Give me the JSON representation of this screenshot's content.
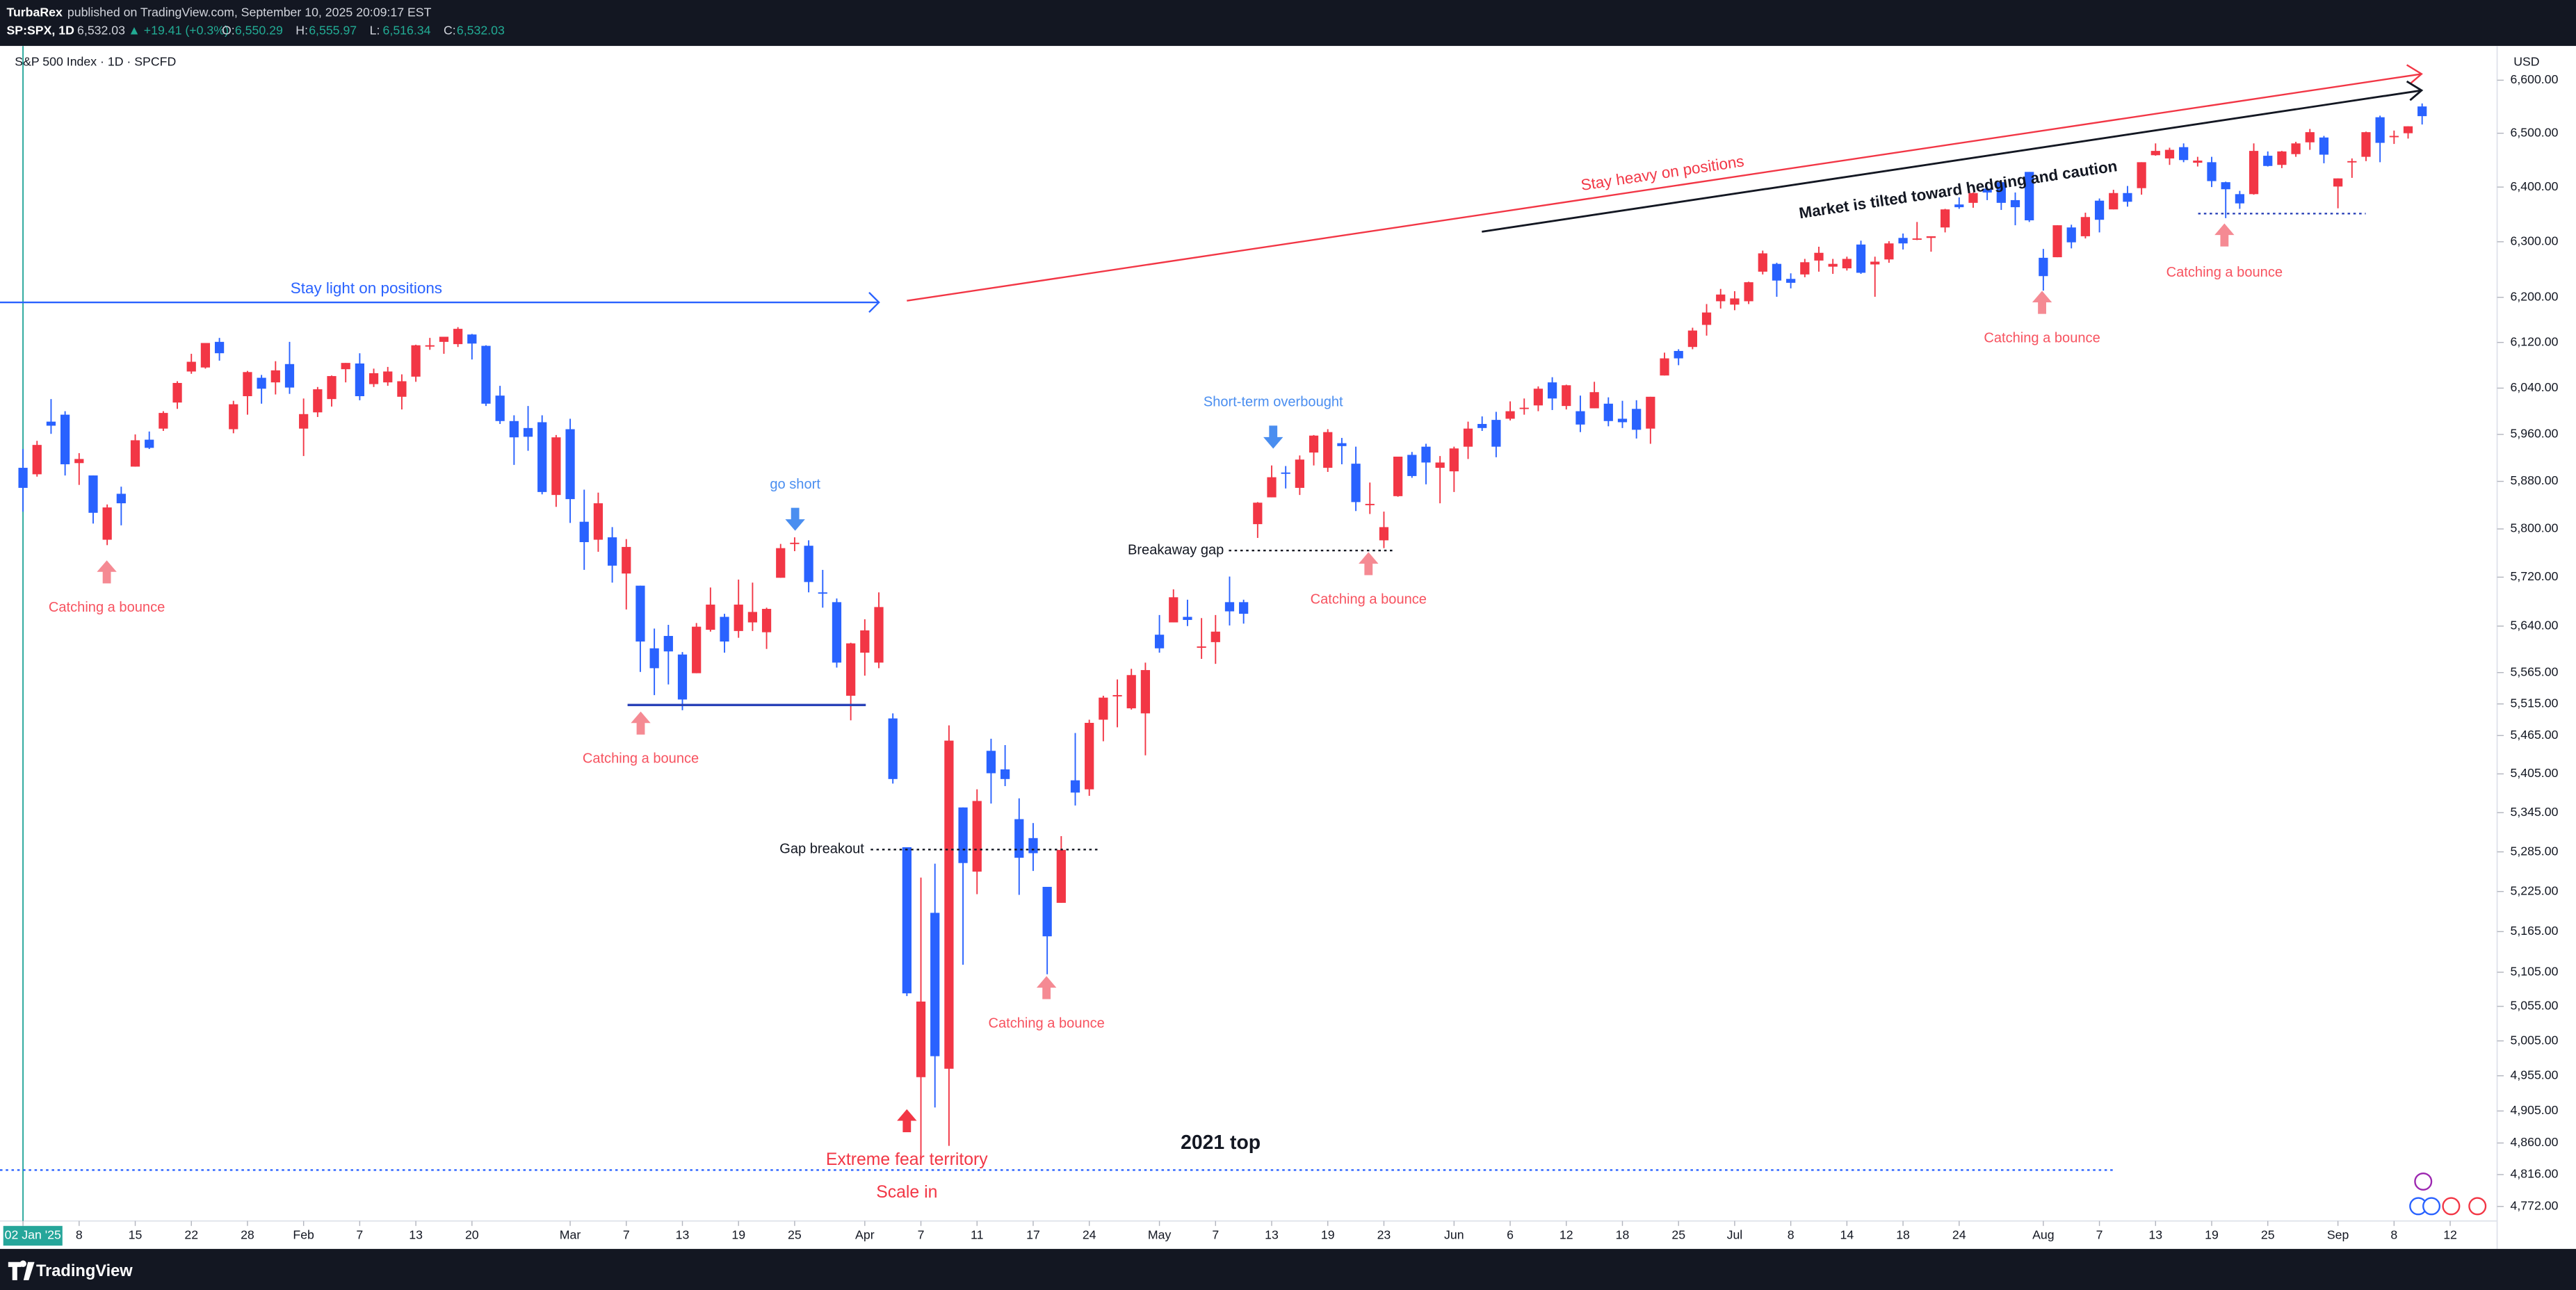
{
  "header": {
    "publisher": "TurbaRex",
    "published": "published on TradingView.com, September 10, 2025 20:09:17 EST",
    "symbol": "SP:SPX, 1D",
    "last": "6,532.03",
    "change": "▲ +19.41 (+0.3%)",
    "ohlc": [
      {
        "key": "O:",
        "value": "6,550.29"
      },
      {
        "key": "H:",
        "value": "6,555.97"
      },
      {
        "key": "L:",
        "value": "6,516.34"
      },
      {
        "key": "C:",
        "value": "6,532.03"
      }
    ]
  },
  "footer": {
    "brand": "TradingView"
  },
  "chart_data": {
    "type": "candlestick",
    "title": "S&P 500 Index · 1D · SPCFD",
    "currency": "USD",
    "log_scale": true,
    "grid": false,
    "up_color": "#f23645",
    "down_color": "#2962ff",
    "x": [
      "2025-01-02",
      "2025-01-03",
      "2025-01-06",
      "2025-01-07",
      "2025-01-08",
      "2025-01-10",
      "2025-01-13",
      "2025-01-14",
      "2025-01-15",
      "2025-01-16",
      "2025-01-17",
      "2025-01-21",
      "2025-01-22",
      "2025-01-23",
      "2025-01-24",
      "2025-01-27",
      "2025-01-28",
      "2025-01-29",
      "2025-01-30",
      "2025-01-31",
      "2025-02-03",
      "2025-02-04",
      "2025-02-05",
      "2025-02-06",
      "2025-02-07",
      "2025-02-10",
      "2025-02-11",
      "2025-02-12",
      "2025-02-13",
      "2025-02-14",
      "2025-02-18",
      "2025-02-19",
      "2025-02-20",
      "2025-02-21",
      "2025-02-24",
      "2025-02-25",
      "2025-02-26",
      "2025-02-27",
      "2025-02-28",
      "2025-03-03",
      "2025-03-04",
      "2025-03-05",
      "2025-03-06",
      "2025-03-07",
      "2025-03-10",
      "2025-03-11",
      "2025-03-12",
      "2025-03-13",
      "2025-03-14",
      "2025-03-17",
      "2025-03-18",
      "2025-03-19",
      "2025-03-20",
      "2025-03-21",
      "2025-03-24",
      "2025-03-25",
      "2025-03-26",
      "2025-03-27",
      "2025-03-28",
      "2025-03-31",
      "2025-04-01",
      "2025-04-02",
      "2025-04-03",
      "2025-04-04",
      "2025-04-07",
      "2025-04-08",
      "2025-04-09",
      "2025-04-10",
      "2025-04-11",
      "2025-04-14",
      "2025-04-15",
      "2025-04-16",
      "2025-04-17",
      "2025-04-21",
      "2025-04-22",
      "2025-04-23",
      "2025-04-24",
      "2025-04-25",
      "2025-04-28",
      "2025-04-29",
      "2025-04-30",
      "2025-05-01",
      "2025-05-02",
      "2025-05-05",
      "2025-05-06",
      "2025-05-07",
      "2025-05-08",
      "2025-05-09",
      "2025-05-12",
      "2025-05-13",
      "2025-05-14",
      "2025-05-15",
      "2025-05-16",
      "2025-05-19",
      "2025-05-20",
      "2025-05-21",
      "2025-05-22",
      "2025-05-23",
      "2025-05-27",
      "2025-05-28",
      "2025-05-29",
      "2025-05-30",
      "2025-06-02",
      "2025-06-03",
      "2025-06-04",
      "2025-06-05",
      "2025-06-06",
      "2025-06-09",
      "2025-06-10",
      "2025-06-11",
      "2025-06-12",
      "2025-06-13",
      "2025-06-16",
      "2025-06-17",
      "2025-06-18",
      "2025-06-20",
      "2025-06-23",
      "2025-06-24",
      "2025-06-25",
      "2025-06-26",
      "2025-06-27",
      "2025-06-30",
      "2025-07-01",
      "2025-07-02",
      "2025-07-03",
      "2025-07-07",
      "2025-07-08",
      "2025-07-09",
      "2025-07-10",
      "2025-07-11",
      "2025-07-14",
      "2025-07-15",
      "2025-07-16",
      "2025-07-17",
      "2025-07-18",
      "2025-07-21",
      "2025-07-22",
      "2025-07-23",
      "2025-07-24",
      "2025-07-25",
      "2025-07-28",
      "2025-07-29",
      "2025-07-30",
      "2025-07-31",
      "2025-08-01",
      "2025-08-04",
      "2025-08-05",
      "2025-08-06",
      "2025-08-07",
      "2025-08-08",
      "2025-08-11",
      "2025-08-12",
      "2025-08-13",
      "2025-08-14",
      "2025-08-15",
      "2025-08-18",
      "2025-08-19",
      "2025-08-20",
      "2025-08-21",
      "2025-08-22",
      "2025-08-25",
      "2025-08-26",
      "2025-08-27",
      "2025-08-28",
      "2025-08-29",
      "2025-09-02",
      "2025-09-03",
      "2025-09-04",
      "2025-09-05",
      "2025-09-08",
      "2025-09-09",
      "2025-09-10"
    ],
    "open": [
      5903,
      5892,
      5982,
      5994,
      5911,
      5890,
      5782,
      5859,
      5905,
      5951,
      5970,
      6015,
      6069,
      6076,
      6121,
      5969,
      6026,
      6058,
      6050,
      6082,
      5970,
      5998,
      6021,
      6073,
      6083,
      6047,
      6050,
      6025,
      6060,
      6115,
      6121,
      6117,
      6134,
      6114,
      6027,
      5983,
      5971,
      5981,
      5857,
      5969,
      5812,
      5782,
      5786,
      5726,
      5706,
      5604,
      5624,
      5594,
      5564,
      5634,
      5655,
      5632,
      5646,
      5630,
      5719,
      5776,
      5772,
      5695,
      5679,
      5528,
      5597,
      5581,
      5492,
      5292,
      4953,
      5193,
      4965,
      5353,
      5255,
      5441,
      5412,
      5335,
      5306,
      5232,
      5208,
      5395,
      5381,
      5490,
      5529,
      5508,
      5500,
      5626,
      5646,
      5655,
      5605,
      5614,
      5679,
      5679,
      5808,
      5853,
      5895,
      5869,
      5929,
      5903,
      5945,
      5910,
      5841,
      5781,
      5855,
      5925,
      5939,
      5903,
      5897,
      5939,
      5978,
      5985,
      5987,
      6004,
      6010,
      6050,
      6009,
      6000,
      6005,
      6013,
      5987,
      6004,
      5970,
      6062,
      6105,
      6112,
      6151,
      6193,
      6187,
      6193,
      6246,
      6260,
      6233,
      6241,
      6266,
      6255,
      6252,
      6295,
      6259,
      6268,
      6307,
      6305,
      6307,
      6326,
      6368,
      6371,
      6397,
      6409,
      6376,
      6428,
      6271,
      6272,
      6326,
      6310,
      6375,
      6359,
      6389,
      6398,
      6459,
      6453,
      6474,
      6445,
      6446,
      6409,
      6387,
      6387,
      6458,
      6441,
      6461,
      6483,
      6492,
      6401,
      6448,
      6456,
      6530,
      6494,
      6500,
      6550.29
    ],
    "high": [
      5935,
      5949,
      6021,
      6000,
      5928,
      5890,
      5841,
      5871,
      5960,
      5965,
      6000,
      6052,
      6100,
      6119,
      6128,
      6018,
      6070,
      6063,
      6087,
      6121,
      6022,
      6042,
      6062,
      6084,
      6101,
      6074,
      6077,
      6064,
      6116,
      6128,
      6130,
      6147,
      6135,
      6115,
      6044,
      5993,
      6009,
      5993,
      5959,
      5987,
      5866,
      5861,
      5803,
      5783,
      5706,
      5636,
      5642,
      5598,
      5645,
      5703,
      5660,
      5716,
      5711,
      5670,
      5775,
      5786,
      5781,
      5732,
      5685,
      5613,
      5651,
      5695,
      5500,
      5292,
      5246,
      5267,
      5481,
      5353,
      5381,
      5460,
      5450,
      5367,
      5329,
      5232,
      5309,
      5469,
      5490,
      5528,
      5554,
      5571,
      5581,
      5658,
      5700,
      5683,
      5653,
      5658,
      5721,
      5683,
      5845,
      5907,
      5906,
      5924,
      5959,
      5969,
      5954,
      5939,
      5878,
      5829,
      5922,
      5930,
      5944,
      5923,
      5939,
      5982,
      5991,
      5999,
      6017,
      6022,
      6043,
      6059,
      6046,
      6027,
      6051,
      6024,
      6018,
      6019,
      6025,
      6102,
      6108,
      6146,
      6188,
      6215,
      6211,
      6228,
      6284,
      6262,
      6243,
      6269,
      6291,
      6269,
      6273,
      6302,
      6273,
      6301,
      6315,
      6336,
      6310,
      6360,
      6381,
      6390,
      6401,
      6410,
      6390,
      6428,
      6287,
      6330,
      6331,
      6353,
      6379,
      6395,
      6402,
      6446,
      6481,
      6473,
      6481,
      6456,
      6456,
      6410,
      6393,
      6481,
      6466,
      6467,
      6484,
      6508,
      6495,
      6416,
      6453,
      6503,
      6533,
      6505,
      6513,
      6555.97
    ],
    "low": [
      5829,
      5888,
      5961,
      5890,
      5874,
      5809,
      5773,
      5806,
      5905,
      5935,
      5966,
      6004,
      6065,
      6074,
      6088,
      5962,
      5994,
      6013,
      6029,
      6030,
      5923,
      5990,
      6008,
      6050,
      6019,
      6042,
      6044,
      6003,
      6051,
      6107,
      6100,
      6112,
      6090,
      6009,
      5978,
      5908,
      5932,
      5858,
      5837,
      5810,
      5732,
      5762,
      5711,
      5667,
      5566,
      5529,
      5546,
      5505,
      5564,
      5631,
      5597,
      5621,
      5632,
      5603,
      5719,
      5763,
      5695,
      5670,
      5573,
      5489,
      5560,
      5572,
      5390,
      5070,
      4835,
      4910,
      4856,
      5116,
      5221,
      5359,
      5386,
      5220,
      5256,
      5102,
      5208,
      5356,
      5371,
      5456,
      5478,
      5506,
      5434,
      5597,
      5646,
      5640,
      5587,
      5579,
      5641,
      5644,
      5785,
      5853,
      5868,
      5857,
      5907,
      5896,
      5909,
      5830,
      5825,
      5768,
      5854,
      5886,
      5875,
      5843,
      5862,
      5918,
      5966,
      5921,
      5984,
      5994,
      6000,
      6002,
      6003,
      5964,
      6005,
      5974,
      5971,
      5953,
      5944,
      6062,
      6080,
      6108,
      6132,
      6180,
      6177,
      6188,
      6241,
      6201,
      6216,
      6236,
      6246,
      6242,
      6248,
      6242,
      6201,
      6262,
      6286,
      6303,
      6282,
      6317,
      6360,
      6362,
      6376,
      6358,
      6330,
      6336,
      6212,
      6272,
      6288,
      6306,
      6317,
      6359,
      6364,
      6386,
      6458,
      6441,
      6446,
      6438,
      6400,
      6343,
      6360,
      6386,
      6438,
      6435,
      6456,
      6469,
      6444,
      6361,
      6417,
      6448,
      6446,
      6480,
      6490,
      6516.34
    ],
    "close": [
      5869,
      5942,
      5975,
      5909,
      5918,
      5827,
      5836,
      5843,
      5950,
      5937,
      5997,
      6049,
      6086,
      6119,
      6101,
      6012,
      6068,
      6039,
      6071,
      6041,
      5995,
      6038,
      6061,
      6084,
      6026,
      6066,
      6069,
      6052,
      6115,
      6115,
      6130,
      6144,
      6118,
      6013,
      5983,
      5955,
      5956,
      5862,
      5955,
      5850,
      5778,
      5843,
      5739,
      5770,
      5615,
      5572,
      5599,
      5522,
      5639,
      5675,
      5615,
      5675,
      5663,
      5668,
      5768,
      5777,
      5712,
      5693,
      5581,
      5612,
      5633,
      5671,
      5397,
      5074,
      5062,
      4983,
      5457,
      5268,
      5363,
      5406,
      5397,
      5276,
      5283,
      5158,
      5288,
      5376,
      5485,
      5525,
      5529,
      5561,
      5569,
      5604,
      5687,
      5650,
      5607,
      5631,
      5664,
      5660,
      5844,
      5887,
      5893,
      5917,
      5958,
      5964,
      5940,
      5845,
      5842,
      5803,
      5922,
      5889,
      5912,
      5912,
      5936,
      5970,
      5971,
      5939,
      6000,
      6006,
      6039,
      6022,
      6045,
      5977,
      6033,
      5983,
      5981,
      5968,
      6025,
      6092,
      6092,
      6141,
      6173,
      6205,
      6198,
      6227,
      6279,
      6230,
      6226,
      6263,
      6280,
      6260,
      6269,
      6244,
      6264,
      6297,
      6297,
      6306,
      6310,
      6359,
      6363,
      6389,
      6390,
      6371,
      6363,
      6339,
      6238,
      6330,
      6299,
      6345,
      6340,
      6389,
      6373,
      6446,
      6467,
      6469,
      6450,
      6449,
      6411,
      6396,
      6370,
      6467,
      6439,
      6466,
      6481,
      6502,
      6460,
      6416,
      6448,
      6502,
      6482,
      6495,
      6513,
      6532.03
    ],
    "ylim": [
      4714,
      6659
    ],
    "yticks": [
      {
        "value": 6600,
        "label": "6,600.00"
      },
      {
        "value": 6500,
        "label": "6,500.00"
      },
      {
        "value": 6400,
        "label": "6,400.00"
      },
      {
        "value": 6300,
        "label": "6,300.00"
      },
      {
        "value": 6200,
        "label": "6,200.00"
      },
      {
        "value": 6120,
        "label": "6,120.00"
      },
      {
        "value": 6040,
        "label": "6,040.00"
      },
      {
        "value": 5960,
        "label": "5,960.00"
      },
      {
        "value": 5880,
        "label": "5,880.00"
      },
      {
        "value": 5800,
        "label": "5,800.00"
      },
      {
        "value": 5720,
        "label": "5,720.00"
      },
      {
        "value": 5640,
        "label": "5,640.00"
      },
      {
        "value": 5565,
        "label": "5,565.00"
      },
      {
        "value": 5515,
        "label": "5,515.00"
      },
      {
        "value": 5465,
        "label": "5,465.00"
      },
      {
        "value": 5405,
        "label": "5,405.00"
      },
      {
        "value": 5345,
        "label": "5,345.00"
      },
      {
        "value": 5285,
        "label": "5,285.00"
      },
      {
        "value": 5225,
        "label": "5,225.00"
      },
      {
        "value": 5165,
        "label": "5,165.00"
      },
      {
        "value": 5105,
        "label": "5,105.00"
      },
      {
        "value": 5055,
        "label": "5,055.00"
      },
      {
        "value": 5005,
        "label": "5,005.00"
      },
      {
        "value": 4955,
        "label": "4,955.00"
      },
      {
        "value": 4905,
        "label": "4,905.00"
      },
      {
        "value": 4860,
        "label": "4,860.00"
      },
      {
        "value": 4816,
        "label": "4,816.00"
      },
      {
        "value": 4772,
        "label": "4,772.00"
      }
    ],
    "xticks": [
      {
        "value": "2025-01-02",
        "label": "02 Jan '25"
      },
      {
        "value": "2025-01-08",
        "label": "8"
      },
      {
        "value": "2025-01-15",
        "label": "15"
      },
      {
        "value": "2025-01-22",
        "label": "22"
      },
      {
        "value": "2025-01-28",
        "label": "28"
      },
      {
        "value": "2025-02-03",
        "label": "Feb"
      },
      {
        "value": "2025-02-07",
        "label": "7"
      },
      {
        "value": "2025-02-13",
        "label": "13"
      },
      {
        "value": "2025-02-20",
        "label": "20"
      },
      {
        "value": "2025-03-03",
        "label": "Mar"
      },
      {
        "value": "2025-03-07",
        "label": "7"
      },
      {
        "value": "2025-03-13",
        "label": "13"
      },
      {
        "value": "2025-03-19",
        "label": "19"
      },
      {
        "value": "2025-03-25",
        "label": "25"
      },
      {
        "value": "2025-04-01",
        "label": "Apr"
      },
      {
        "value": "2025-04-07",
        "label": "7"
      },
      {
        "value": "2025-04-11",
        "label": "11"
      },
      {
        "value": "2025-04-17",
        "label": "17"
      },
      {
        "value": "2025-04-24",
        "label": "24"
      },
      {
        "value": "2025-05-01",
        "label": "May"
      },
      {
        "value": "2025-05-07",
        "label": "7"
      },
      {
        "value": "2025-05-13",
        "label": "13"
      },
      {
        "value": "2025-05-19",
        "label": "19"
      },
      {
        "value": "2025-05-23",
        "label": "23"
      },
      {
        "value": "2025-06-02",
        "label": "Jun"
      },
      {
        "value": "2025-06-06",
        "label": "6"
      },
      {
        "value": "2025-06-12",
        "label": "12"
      },
      {
        "value": "2025-06-18",
        "label": "18"
      },
      {
        "value": "2025-06-25",
        "label": "25"
      },
      {
        "value": "2025-07-01",
        "label": "Jul"
      },
      {
        "value": "2025-07-08",
        "label": "8"
      },
      {
        "value": "2025-07-14",
        "label": "14"
      },
      {
        "value": "2025-07-18",
        "label": "18"
      },
      {
        "value": "2025-07-24",
        "label": "24"
      },
      {
        "value": "2025-08-01",
        "label": "Aug"
      },
      {
        "value": "2025-08-07",
        "label": "7"
      },
      {
        "value": "2025-08-13",
        "label": "13"
      },
      {
        "value": "2025-08-19",
        "label": "19"
      },
      {
        "value": "2025-08-25",
        "label": "25"
      },
      {
        "value": "2025-09-02",
        "label": "Sep"
      },
      {
        "value": "2025-09-08",
        "label": "8"
      },
      {
        "value": "2025-09-12",
        "label": "12"
      }
    ],
    "annotations": [
      "Stay light on positions",
      "Stay heavy on positions",
      "Market is tilted toward hedging and caution",
      "go short",
      "Short-term overbought",
      "Breakaway gap",
      "Gap breakout",
      "Catching a bounce",
      "Catching a bounce",
      "Catching a bounce",
      "Catching a bounce",
      "Catching a bounce",
      "Catching a bounce",
      "Extreme fear territory",
      "Scale in",
      "2021 top"
    ]
  }
}
